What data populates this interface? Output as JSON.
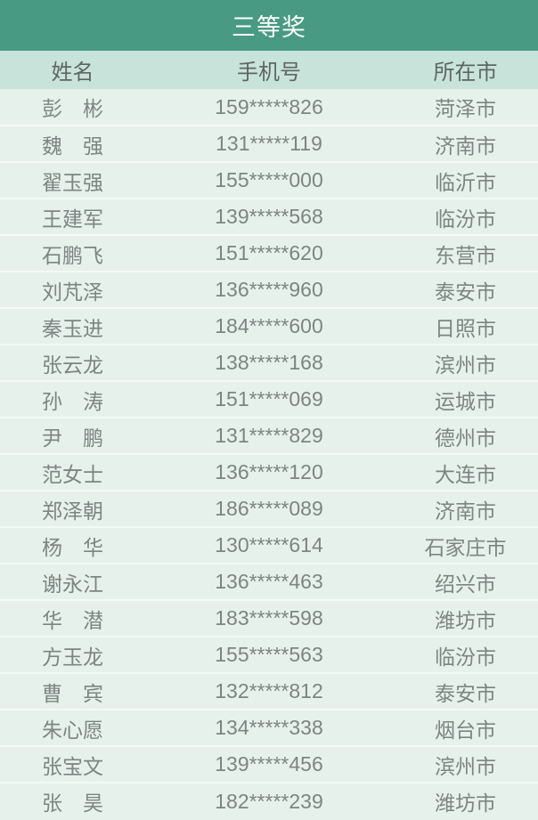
{
  "colors": {
    "title_bg": "#489a82",
    "title_text": "#ffffff",
    "header_row_bg": "#c8e4da",
    "data_row_bg": "#e6f1ec",
    "separator": "#f4faf7",
    "header_text": "#5f6664",
    "data_text": "#7c8582"
  },
  "table": {
    "title": "三等奖",
    "columns": [
      "姓名",
      "手机号",
      "所在市"
    ],
    "rows": [
      {
        "name": "彭　彬",
        "phone": "159*****826",
        "city": "菏泽市"
      },
      {
        "name": "魏　强",
        "phone": "131*****119",
        "city": "济南市"
      },
      {
        "name": "翟玉强",
        "phone": "155*****000",
        "city": "临沂市"
      },
      {
        "name": "王建军",
        "phone": "139*****568",
        "city": "临汾市"
      },
      {
        "name": "石鹏飞",
        "phone": "151*****620",
        "city": "东营市"
      },
      {
        "name": "刘芃泽",
        "phone": "136*****960",
        "city": "泰安市"
      },
      {
        "name": "秦玉进",
        "phone": "184*****600",
        "city": "日照市"
      },
      {
        "name": "张云龙",
        "phone": "138*****168",
        "city": "滨州市"
      },
      {
        "name": "孙　涛",
        "phone": "151*****069",
        "city": "运城市"
      },
      {
        "name": "尹　鹏",
        "phone": "131*****829",
        "city": "德州市"
      },
      {
        "name": "范女士",
        "phone": "136*****120",
        "city": "大连市"
      },
      {
        "name": "郑泽朝",
        "phone": "186*****089",
        "city": "济南市"
      },
      {
        "name": "杨　华",
        "phone": "130*****614",
        "city": "石家庄市"
      },
      {
        "name": "谢永江",
        "phone": "136*****463",
        "city": "绍兴市"
      },
      {
        "name": "华　潜",
        "phone": "183*****598",
        "city": "潍坊市"
      },
      {
        "name": "方玉龙",
        "phone": "155*****563",
        "city": "临汾市"
      },
      {
        "name": "曹　宾",
        "phone": "132*****812",
        "city": "泰安市"
      },
      {
        "name": "朱心愿",
        "phone": "134*****338",
        "city": "烟台市"
      },
      {
        "name": "张宝文",
        "phone": "139*****456",
        "city": "滨州市"
      },
      {
        "name": "张　昊",
        "phone": "182*****239",
        "city": "潍坊市"
      }
    ]
  }
}
